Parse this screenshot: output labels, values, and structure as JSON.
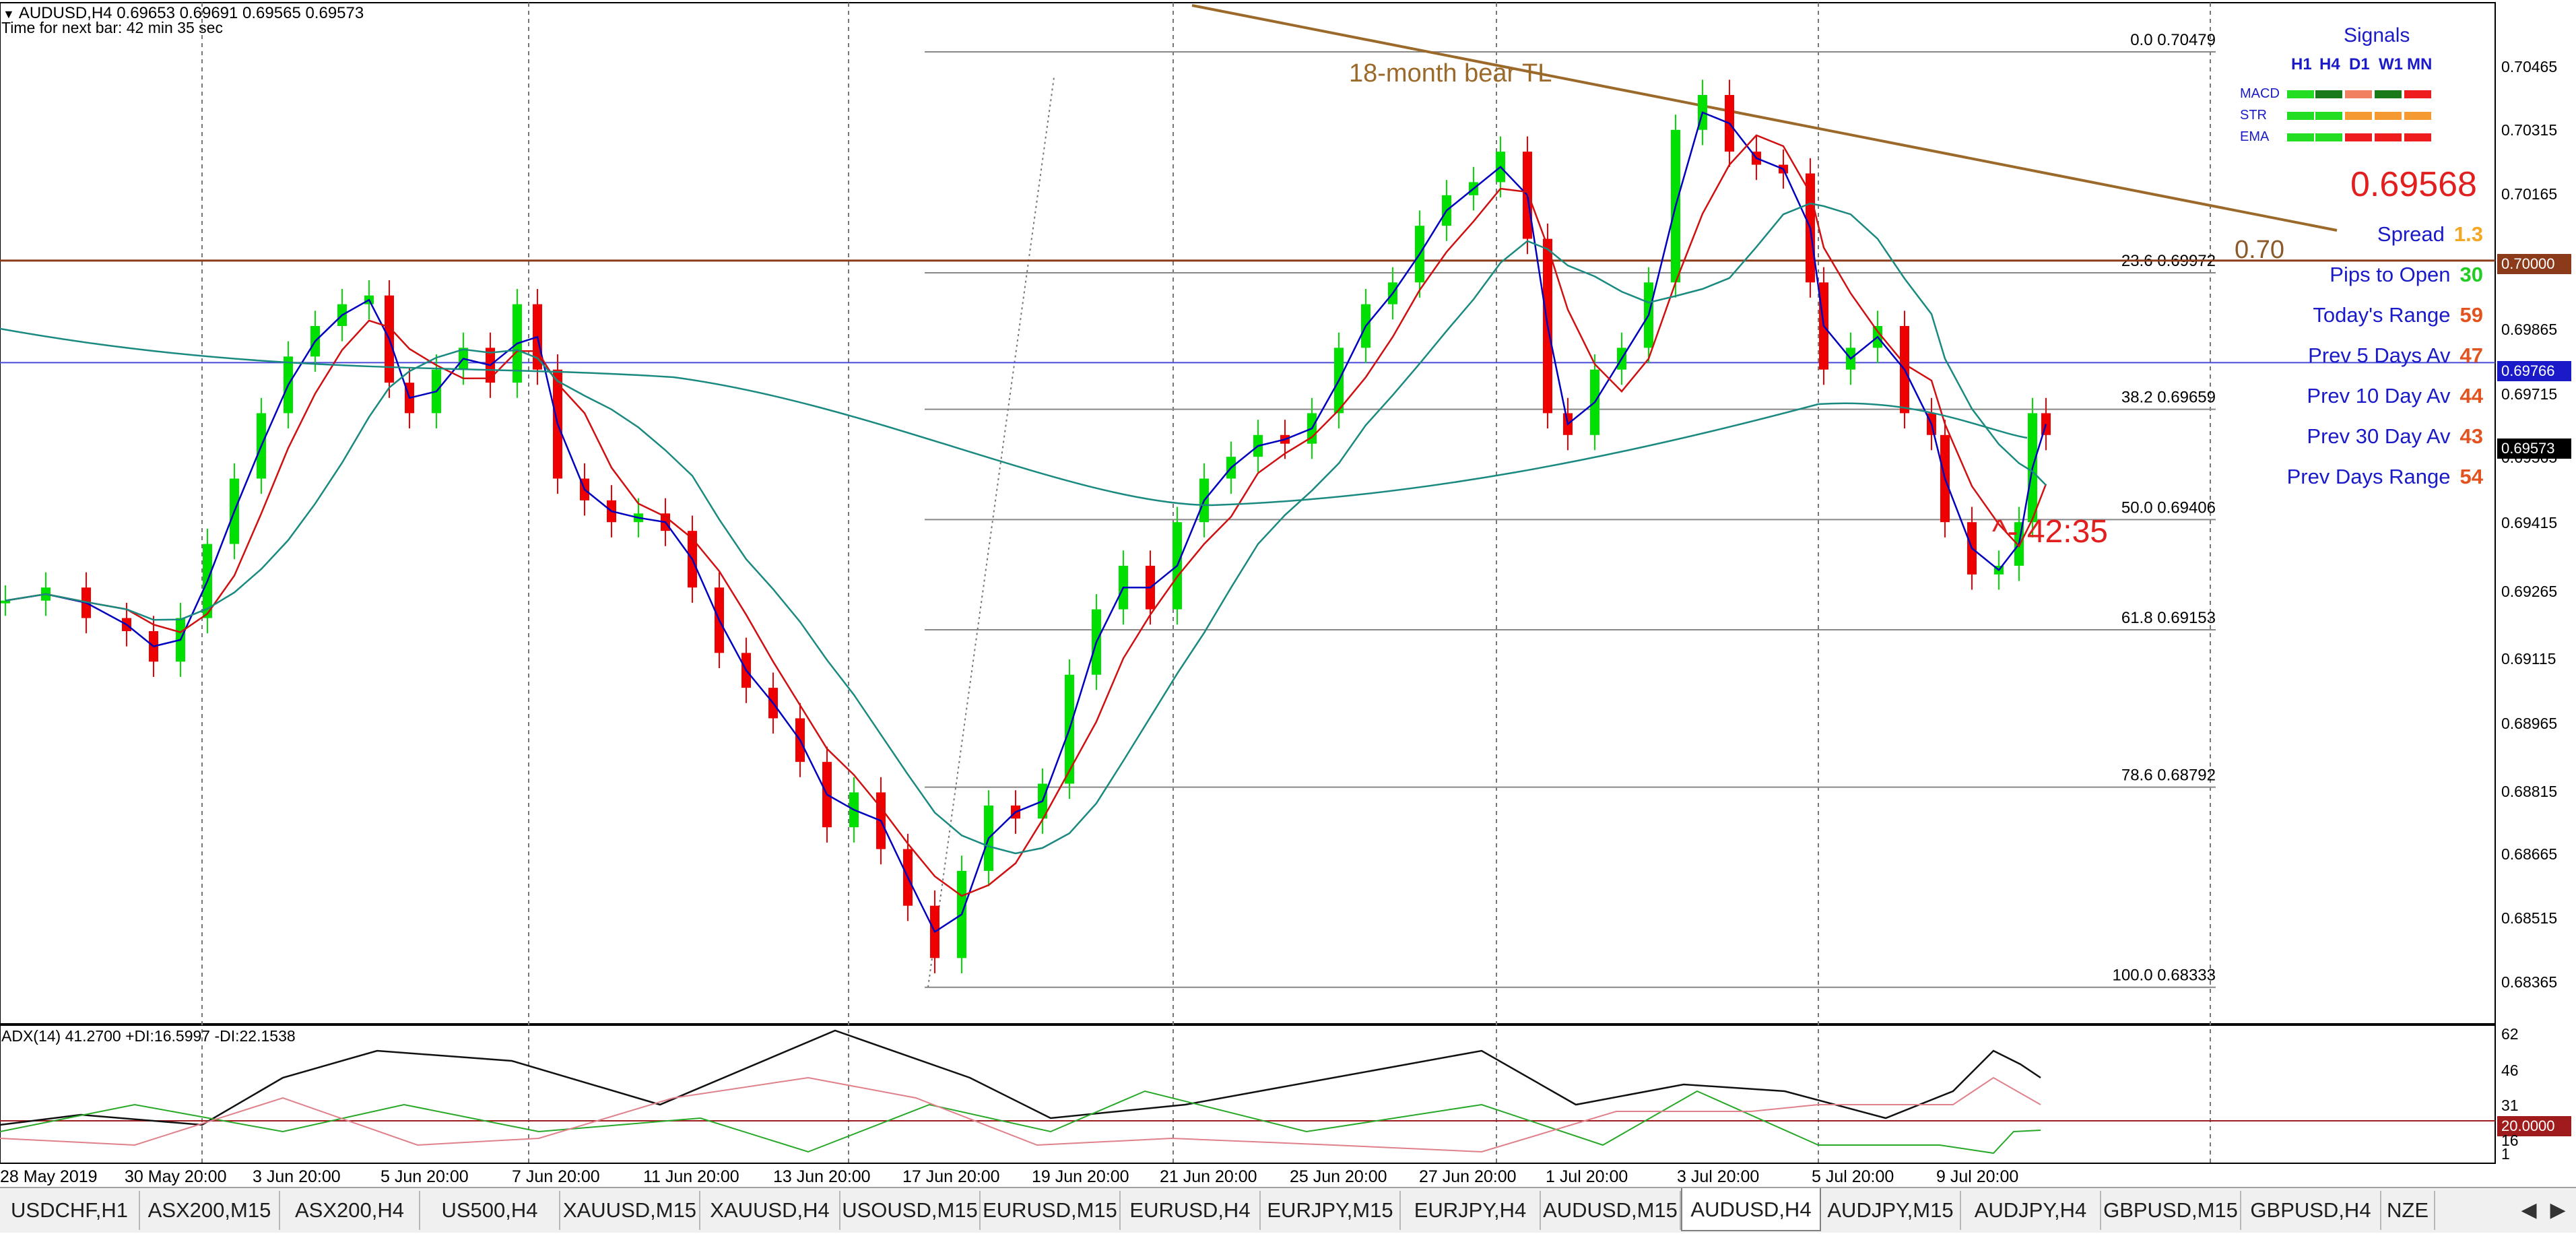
{
  "chart": {
    "ohlc_header": "AUDUSD,H4  0.69653 0.69691 0.69565 0.69573",
    "timer_text": "Time for next bar: 42 min 35 sec",
    "adx_header": "ADX(14) 41.2700 +DI:16.5997 -DI:22.1538",
    "trendline_label": "18-month bear TL",
    "level_label": "0.70",
    "countdown": "^- 42:35",
    "price_axis": [
      "0.70465",
      "0.70315",
      "0.70165",
      "0.70015",
      "0.69865",
      "0.69715",
      "0.69565",
      "0.69415",
      "0.69265",
      "0.69115",
      "0.68965",
      "0.68815",
      "0.68665",
      "0.68515",
      "0.68365"
    ],
    "price_tags": {
      "level": "0.70000",
      "blue_line": "0.69766",
      "bid": "0.69573",
      "adx_level": "20.0000"
    },
    "adx_axis": [
      "62",
      "46",
      "31",
      "16",
      "1"
    ],
    "date_axis": [
      "28 May 2019",
      "30 May 20:00",
      "3 Jun 20:00",
      "5 Jun 20:00",
      "7 Jun 20:00",
      "11 Jun 20:00",
      "13 Jun 20:00",
      "17 Jun 20:00",
      "19 Jun 20:00",
      "21 Jun 20:00",
      "25 Jun 20:00",
      "27 Jun 20:00",
      "1 Jul 20:00",
      "3 Jul 20:00",
      "5 Jul 20:00",
      "9 Jul 20:00"
    ],
    "fib_levels": [
      {
        "label": "0.0  0.70479",
        "price": 0.70479
      },
      {
        "label": "23.6  0.69972",
        "price": 0.69972
      },
      {
        "label": "38.2  0.69659",
        "price": 0.69659
      },
      {
        "label": "50.0  0.69406",
        "price": 0.69406
      },
      {
        "label": "61.8  0.69153",
        "price": 0.69153
      },
      {
        "label": "78.6  0.68792",
        "price": 0.68792
      },
      {
        "label": "100.0  0.68333",
        "price": 0.68333
      }
    ]
  },
  "signals": {
    "title": "Signals",
    "timeframes": [
      "H1",
      "H4",
      "D1",
      "W1",
      "MN"
    ],
    "rows": [
      {
        "label": "MACD",
        "colors": [
          "#22dd22",
          "#1a7a1a",
          "#f08060",
          "#1a7a1a",
          "#ee1c1c"
        ]
      },
      {
        "label": "STR",
        "colors": [
          "#22dd22",
          "#22dd22",
          "#f59a30",
          "#f59a30",
          "#f59a30"
        ]
      },
      {
        "label": "EMA",
        "colors": [
          "#22dd22",
          "#22dd22",
          "#ee1c1c",
          "#ee1c1c",
          "#ee1c1c"
        ]
      }
    ],
    "bid": "0.69568",
    "stats": [
      {
        "label": "Spread",
        "value": "1.3",
        "color": "#f5a623"
      },
      {
        "label": "Pips to Open",
        "value": "30",
        "color": "#22cc22"
      },
      {
        "label": "Today's Range",
        "value": "59",
        "color": "#e2531f"
      },
      {
        "label": "Prev 5 Days Av",
        "value": "47",
        "color": "#e2531f"
      },
      {
        "label": "Prev 10 Day Av",
        "value": "44",
        "color": "#e2531f"
      },
      {
        "label": "Prev 30 Day Av",
        "value": "43",
        "color": "#e2531f"
      },
      {
        "label": "Prev Days Range",
        "value": "54",
        "color": "#e2531f"
      }
    ]
  },
  "tabs": {
    "items": [
      "USDCHF,H1",
      "ASX200,M15",
      "ASX200,H4",
      "US500,H4",
      "XAUUSD,M15",
      "XAUUSD,H4",
      "USOUSD,M15",
      "EURUSD,M15",
      "EURUSD,H4",
      "EURJPY,M15",
      "EURJPY,H4",
      "AUDUSD,M15",
      "AUDUSD,H4",
      "AUDJPY,M15",
      "AUDJPY,H4",
      "GBPUSD,M15",
      "GBPUSD,H4",
      "NZE"
    ],
    "active_index": 12,
    "scroll_left": "◀",
    "scroll_right": "▶"
  },
  "colors": {
    "bull": "#00e000",
    "bear": "#ee0000",
    "ema_fast": "#0000c0",
    "ema_mid": "#d01010",
    "ema_slow": "#1a8a80",
    "trendline": "#9b6a2b",
    "level": "#8b3a1a"
  }
}
